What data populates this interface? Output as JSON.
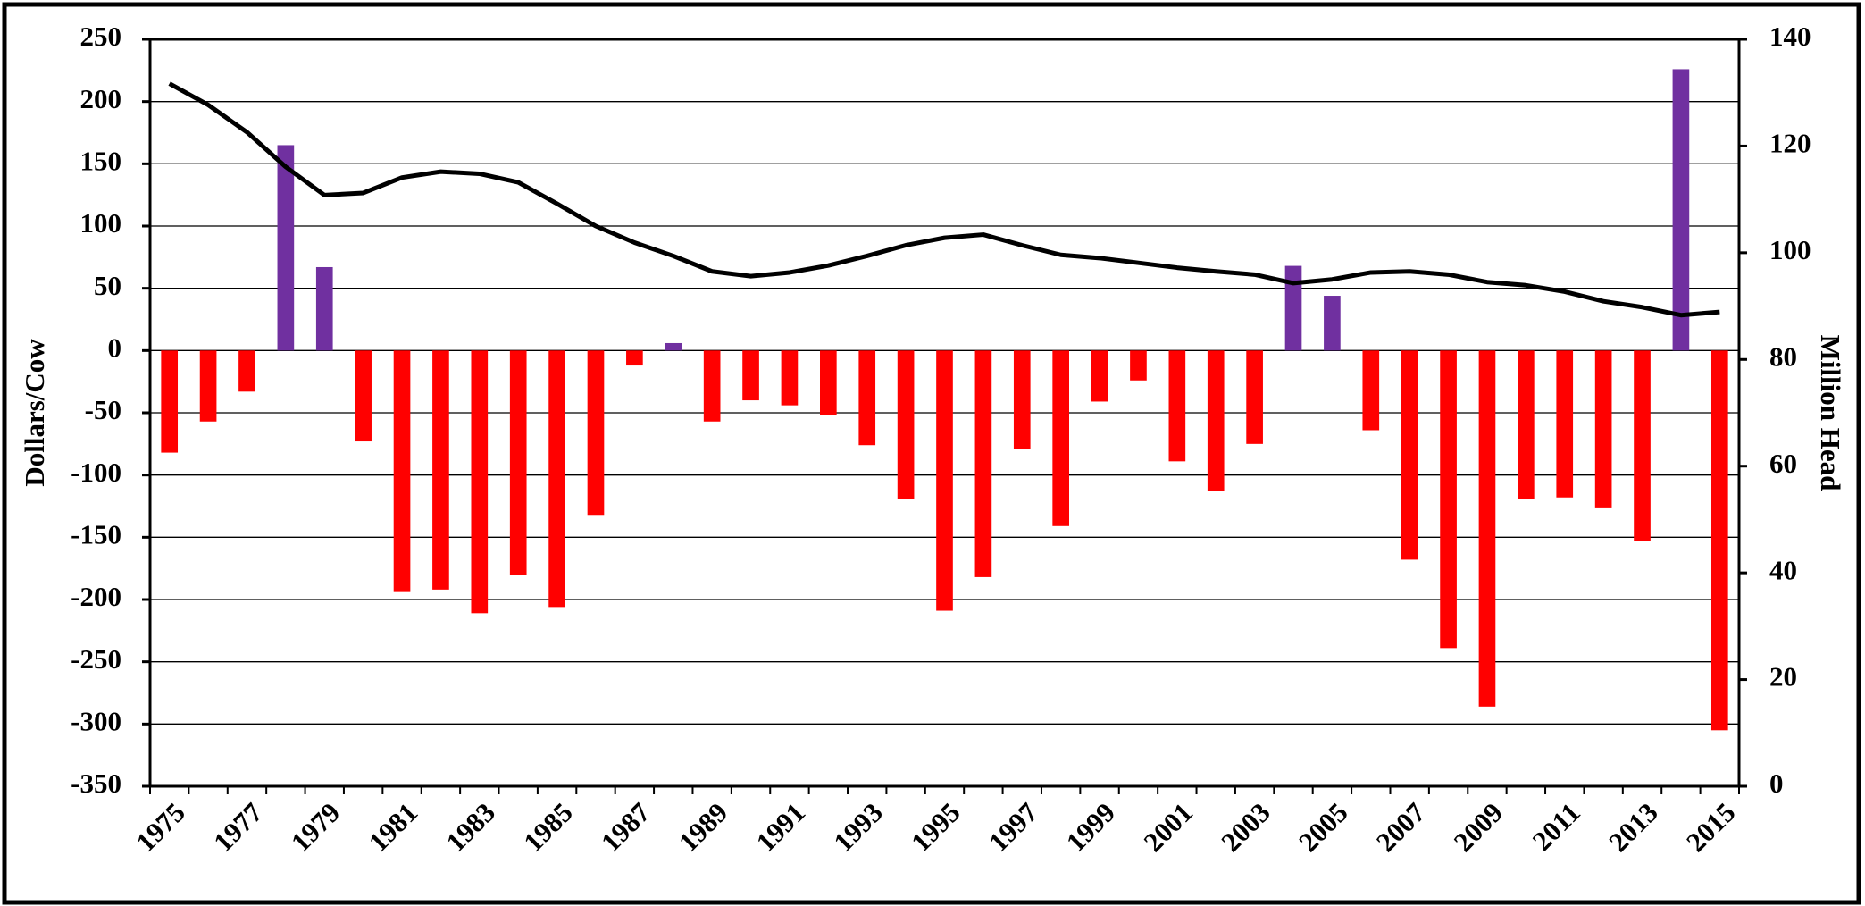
{
  "chart_data": {
    "type": "bar",
    "categories": [
      "1975",
      null,
      "1977",
      null,
      "1979",
      null,
      "1981",
      null,
      "1983",
      null,
      "1985",
      null,
      "1987",
      null,
      "1989",
      null,
      "1991",
      null,
      "1993",
      null,
      "1995",
      null,
      "1997",
      null,
      "1999",
      null,
      "2001",
      null,
      "2003",
      null,
      "2005",
      null,
      "2007",
      null,
      "2009",
      null,
      "2011",
      null,
      "2013",
      null,
      "2015"
    ],
    "series": [
      {
        "type": "bar",
        "color": "#ff0000",
        "positive_color": "#7030a0",
        "values": [
          -82,
          -57,
          -33,
          165,
          67,
          -73,
          -194,
          -192,
          -211,
          -180,
          -206,
          -132,
          -12,
          6,
          -57,
          -40,
          -44,
          -52,
          -76,
          -119,
          -209,
          -182,
          -79,
          -141,
          -41,
          -24,
          -89,
          -113,
          -75,
          68,
          44,
          -64,
          -168,
          -239,
          -286,
          -119,
          -118,
          -126,
          -153,
          226,
          -305
        ]
      },
      {
        "type": "line",
        "axis": "y2",
        "color": "#000000",
        "values": [
          131.7,
          127.7,
          122.6,
          116.1,
          110.8,
          111.2,
          114.1,
          115.2,
          114.8,
          113.2,
          109.2,
          105.0,
          101.9,
          99.4,
          96.5,
          95.6,
          96.3,
          97.6,
          99.4,
          101.4,
          102.8,
          103.4,
          101.4,
          99.6,
          99.0,
          98.1,
          97.2,
          96.5,
          95.9,
          94.3,
          95.0,
          96.3,
          96.5,
          95.9,
          94.5,
          93.9,
          92.7,
          90.9,
          89.8,
          88.3,
          88.9
        ]
      }
    ],
    "ylabel": "Dollars/Cow",
    "y2label": "Million Head",
    "ylim": [
      -350,
      250
    ],
    "yticks": [
      -350,
      -300,
      -250,
      -200,
      -150,
      -100,
      -50,
      0,
      50,
      100,
      150,
      200,
      250
    ],
    "y2lim": [
      0,
      140
    ],
    "y2ticks": [
      0,
      20,
      40,
      60,
      80,
      100,
      120,
      140
    ],
    "grid": true
  }
}
